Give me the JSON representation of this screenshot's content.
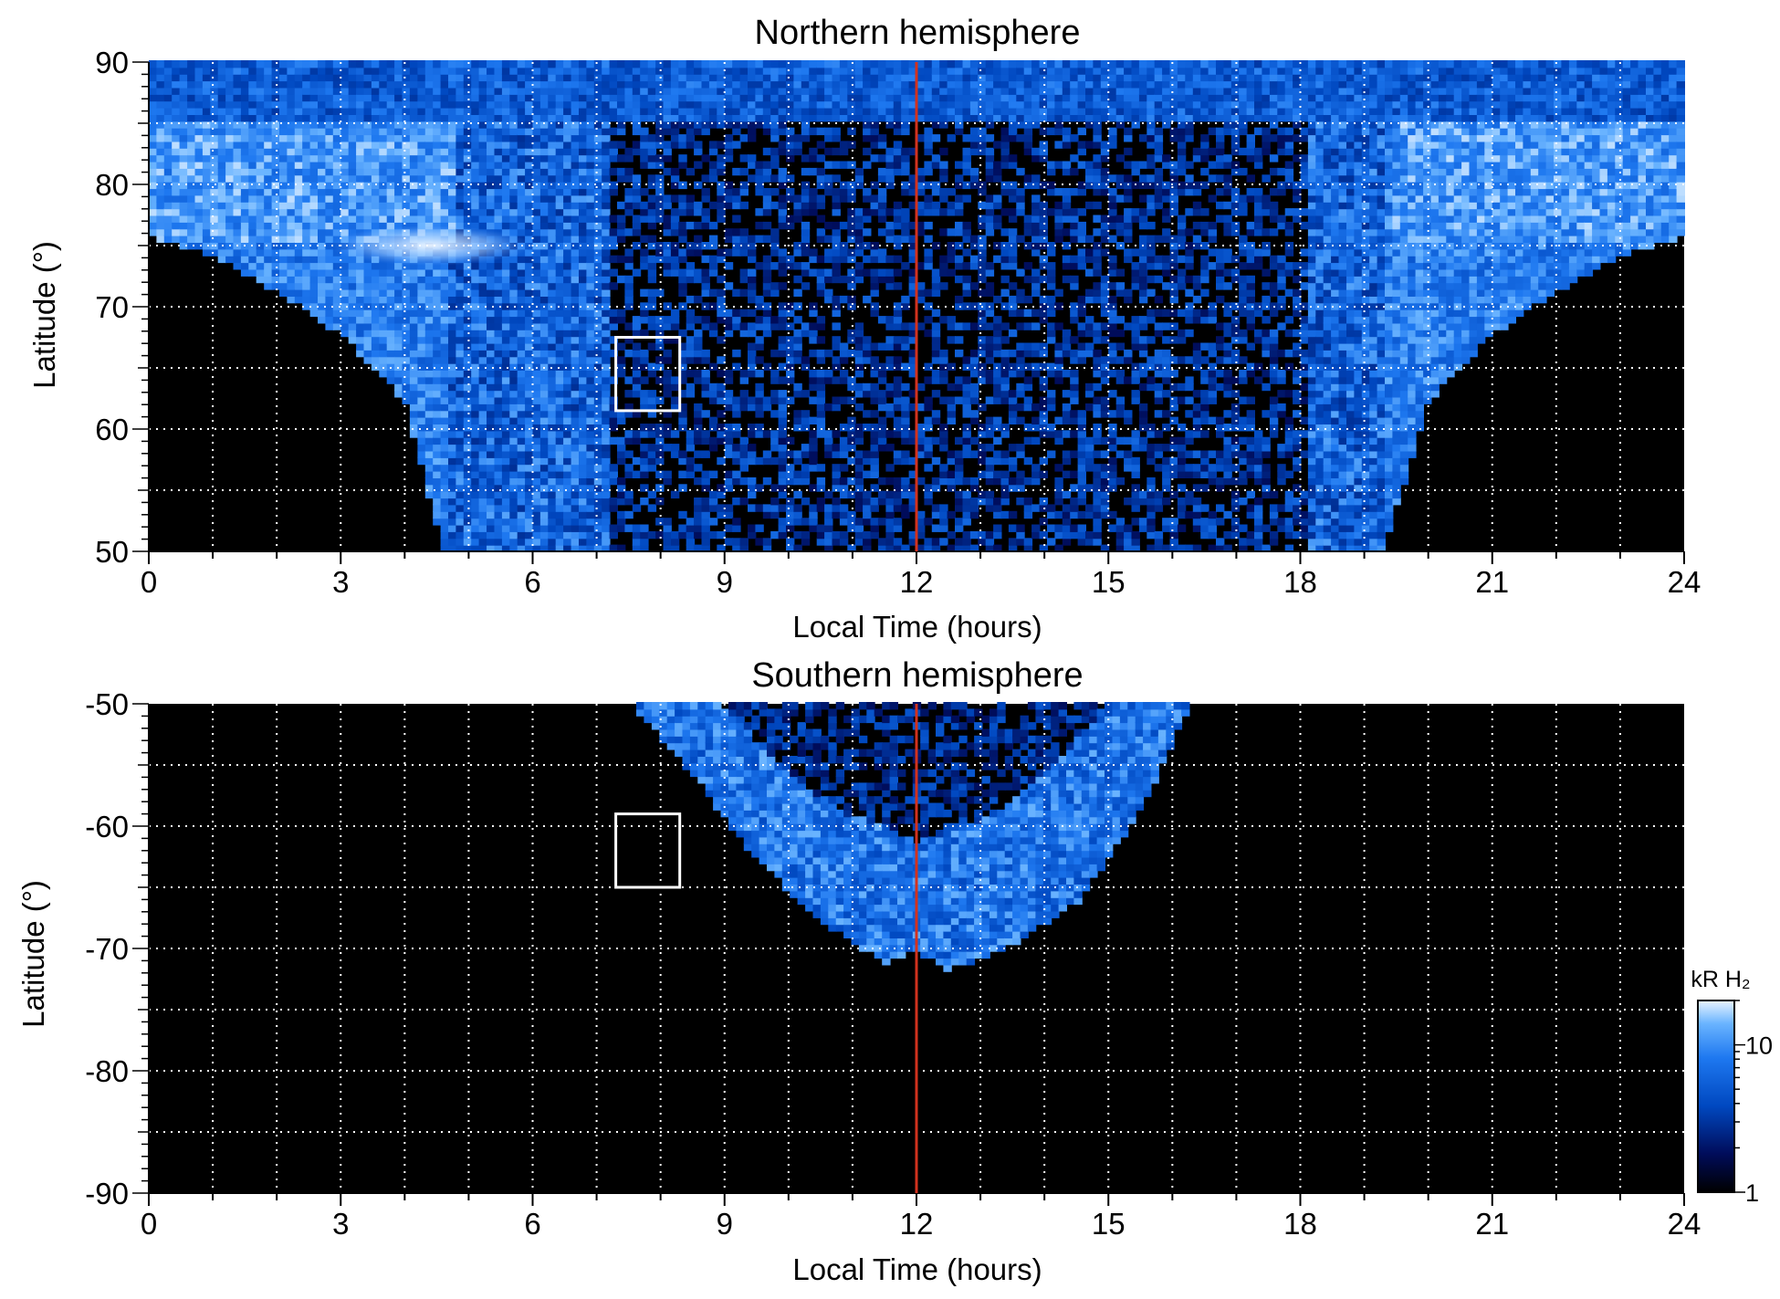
{
  "chart_data": [
    {
      "type": "heatmap",
      "title": "Northern hemisphere",
      "xlabel": "Local Time (hours)",
      "ylabel": "Latitude (°)",
      "xlim": [
        0,
        24
      ],
      "ylim": [
        50,
        90
      ],
      "x_ticks": [
        0,
        3,
        6,
        9,
        12,
        15,
        18,
        21,
        24
      ],
      "x_tick_labels": [
        "0",
        "3",
        "6",
        "9",
        "12",
        "15",
        "18",
        "21",
        "24"
      ],
      "y_ticks": [
        50,
        60,
        70,
        80,
        90
      ],
      "y_tick_labels": [
        "50",
        "60",
        "70",
        "80",
        "90"
      ],
      "grid_x": [
        1,
        2,
        3,
        4,
        5,
        6,
        7,
        8,
        9,
        10,
        11,
        12,
        13,
        14,
        15,
        16,
        17,
        18,
        19,
        20,
        21,
        22,
        23
      ],
      "grid_y": [
        55,
        60,
        65,
        70,
        75,
        80,
        85
      ],
      "grid": true,
      "reference_line": {
        "x": 12,
        "color": "#d2321e"
      },
      "highlight_box": {
        "x": [
          7.3,
          8.3
        ],
        "y": [
          61.5,
          67.5
        ],
        "color": "#ffffff"
      },
      "emission_region": {
        "outer_boundary": [
          [
            0,
            75.5
          ],
          [
            1,
            74
          ],
          [
            2,
            71
          ],
          [
            3,
            67.5
          ],
          [
            4,
            62
          ],
          [
            4.6,
            50
          ],
          [
            19.3,
            50
          ],
          [
            20,
            62
          ],
          [
            21,
            67.5
          ],
          [
            22,
            71
          ],
          [
            23,
            74
          ],
          [
            24,
            75.5
          ]
        ],
        "bright_band": "oval 75-85° across 0-4.5 h and 19.5-24 h",
        "polar_cap": "85-90°, all local times"
      }
    },
    {
      "type": "heatmap",
      "title": "Southern hemisphere",
      "xlabel": "Local Time (hours)",
      "ylabel": "Latitude (°)",
      "xlim": [
        0,
        24
      ],
      "ylim": [
        -90,
        -50
      ],
      "x_ticks": [
        0,
        3,
        6,
        9,
        12,
        15,
        18,
        21,
        24
      ],
      "x_tick_labels": [
        "0",
        "3",
        "6",
        "9",
        "12",
        "15",
        "18",
        "21",
        "24"
      ],
      "y_ticks": [
        -90,
        -80,
        -70,
        -60,
        -50
      ],
      "y_tick_labels": [
        "-90",
        "-80",
        "-70",
        "-60",
        "-50"
      ],
      "grid_x": [
        1,
        2,
        3,
        4,
        5,
        6,
        7,
        8,
        9,
        10,
        11,
        12,
        13,
        14,
        15,
        16,
        17,
        18,
        19,
        20,
        21,
        22,
        23
      ],
      "grid_y": [
        -85,
        -80,
        -75,
        -70,
        -65,
        -60,
        -55
      ],
      "grid": true,
      "reference_line": {
        "x": 12,
        "color": "#d2321e"
      },
      "highlight_box": {
        "x": [
          7.3,
          8.3
        ],
        "y": [
          -65,
          -59
        ],
        "color": "#ffffff"
      },
      "emission_region": {
        "outer_boundary": [
          [
            7.5,
            -50
          ],
          [
            8.5,
            -56
          ],
          [
            9.5,
            -63
          ],
          [
            10.5,
            -68
          ],
          [
            11.5,
            -71.5
          ],
          [
            12,
            -70.5
          ],
          [
            12.5,
            -72
          ],
          [
            13.5,
            -70
          ],
          [
            14.5,
            -66.5
          ],
          [
            15.5,
            -59
          ],
          [
            16.3,
            -50
          ]
        ],
        "inner_boundary": [
          [
            8.9,
            -50
          ],
          [
            9.8,
            -55
          ],
          [
            10.8,
            -59
          ],
          [
            12,
            -61.5
          ],
          [
            13.2,
            -59.5
          ],
          [
            14.2,
            -55
          ],
          [
            15,
            -50
          ]
        ]
      }
    }
  ],
  "colorbar": {
    "label": "kR H₂",
    "scale": "log",
    "range": [
      1,
      20
    ],
    "tick_labels": [
      "1",
      "10"
    ],
    "colors": [
      "#000000",
      "#000c5a",
      "#0048c0",
      "#1e78f0",
      "#6ab4ff",
      "#eaf4ff"
    ]
  }
}
